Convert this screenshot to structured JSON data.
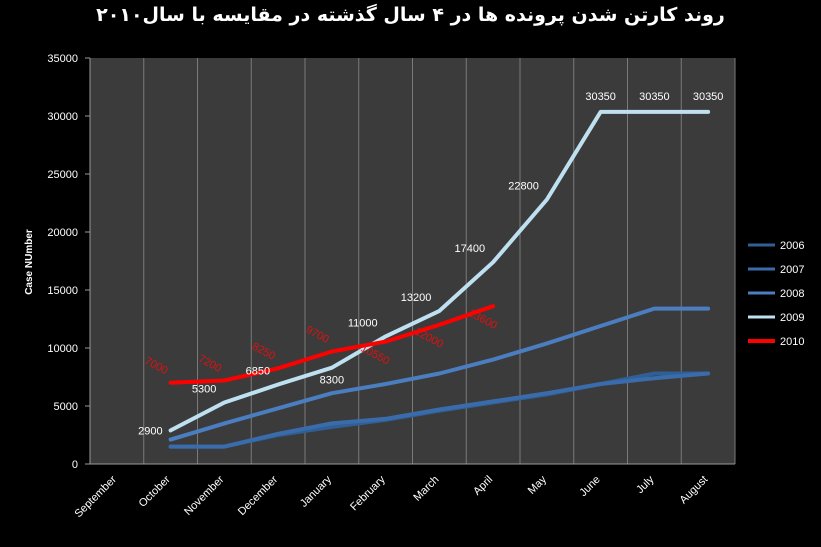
{
  "chart_data": {
    "type": "line",
    "title": "روند کارتن شدن پرونده ها در ۴ سال گذشته در مقایسه با سال۲۰۱۰",
    "xlabel": "",
    "ylabel": "Case NUmber",
    "ylim": [
      0,
      35000
    ],
    "yticks": [
      0,
      5000,
      10000,
      15000,
      20000,
      25000,
      30000,
      35000
    ],
    "grid": "vertical",
    "legend_position": "right",
    "categories": [
      "September",
      "October",
      "November",
      "December",
      "January",
      "February",
      "March",
      "April",
      "May",
      "June",
      "July",
      "August"
    ],
    "series": [
      {
        "name": "2006",
        "color": "#2f5f95",
        "values": [
          null,
          1500,
          1500,
          2500,
          3200,
          3800,
          4600,
          5300,
          6000,
          6900,
          7800,
          7800
        ],
        "labels": []
      },
      {
        "name": "2007",
        "color": "#3a6cab",
        "values": [
          null,
          1500,
          1500,
          2600,
          3500,
          3900,
          4700,
          5400,
          6100,
          6900,
          7400,
          7800
        ],
        "labels": []
      },
      {
        "name": "2008",
        "color": "#4a7ec0",
        "values": [
          null,
          2100,
          3500,
          4800,
          6100,
          6900,
          7800,
          9000,
          10400,
          11900,
          13400,
          13400
        ],
        "labels": []
      },
      {
        "name": "2009",
        "color": "#bfe0f0",
        "values": [
          null,
          2900,
          5300,
          6850,
          8300,
          11000,
          13200,
          17400,
          22800,
          30350,
          30350,
          30350
        ],
        "labels": [
          "",
          "2900",
          "5300",
          "6850",
          "8300",
          "11000",
          "13200",
          "17400",
          "22800",
          "30350",
          "30350",
          "30350"
        ]
      },
      {
        "name": "2010",
        "color": "#ff0000",
        "values": [
          null,
          7000,
          7200,
          8250,
          9700,
          10550,
          12000,
          13600,
          null,
          null,
          null,
          null
        ],
        "labels": [
          "",
          "7000",
          "7200",
          "8250",
          "9700",
          "10550",
          "12000",
          "13600",
          "",
          "",
          "",
          ""
        ]
      }
    ]
  }
}
